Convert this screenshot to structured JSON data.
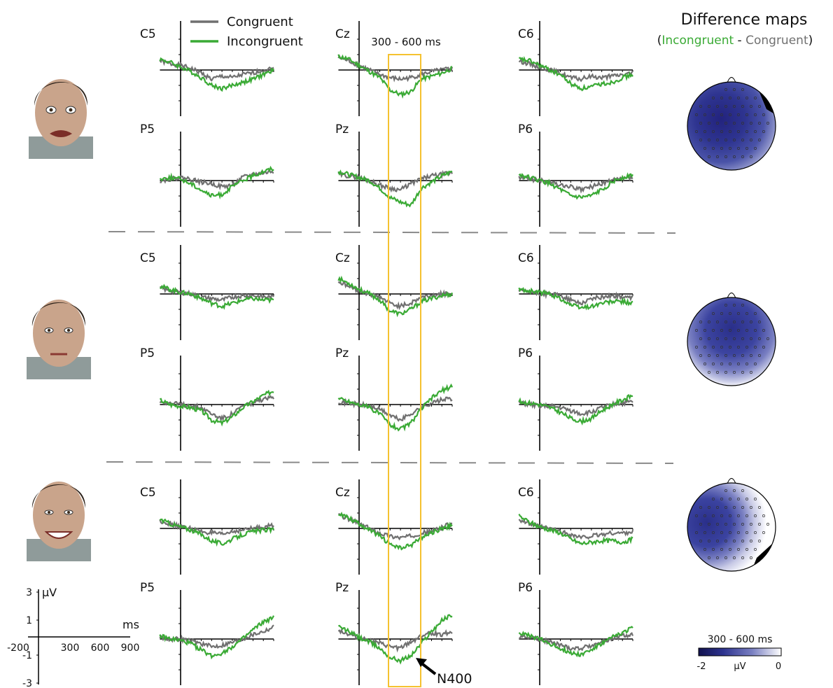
{
  "colors": {
    "congruent": "#707070",
    "incongruent": "#3aaa35",
    "window_box": "#f5c230",
    "map_dark": "#1f1f7a",
    "map_light": "#ffffff",
    "separator": "#8a8a8a"
  },
  "legend": {
    "congruent": "Congruent",
    "incongruent": "Incongruent",
    "position": "top-left"
  },
  "maps_title": {
    "title": "Difference maps",
    "open_paren": "(",
    "incongruent_word": "Incongruent",
    "dash": " - ",
    "congruent_word": "Congruent",
    "close_paren": ")"
  },
  "window_label": "300 - 600 ms",
  "annotation": "N400",
  "scale_axes": {
    "y_unit": "µV",
    "x_unit": "ms",
    "y_ticks": [
      "3",
      "1",
      "-1",
      "-3"
    ],
    "x_ticks": [
      "-200",
      "300",
      "600",
      "900"
    ]
  },
  "colorbar": {
    "title": "300 - 600 ms",
    "min_label": "-2",
    "unit": "µV",
    "max_label": "0",
    "range": [
      -2,
      0
    ]
  },
  "electrodes": [
    "C5",
    "Cz",
    "C6",
    "P5",
    "Pz",
    "P6"
  ],
  "face_icons": [
    "fearful-face-icon",
    "neutral-face-icon",
    "happy-face-icon"
  ],
  "chart_data": {
    "type": "line",
    "x_range_ms": [
      -200,
      900
    ],
    "y_range_uv": [
      -3,
      3
    ],
    "analysis_window_ms": [
      300,
      600
    ],
    "x_ms": [
      -200,
      -100,
      0,
      100,
      200,
      300,
      400,
      500,
      600,
      700,
      800,
      900
    ],
    "panels": [
      {
        "row": 0,
        "electrode": "C5",
        "congruent": [
          0.6,
          0.4,
          0.3,
          0.1,
          -0.2,
          -0.6,
          -0.4,
          -0.5,
          -0.3,
          -0.2,
          0.0,
          0.1
        ],
        "incongruent": [
          0.7,
          0.5,
          0.2,
          -0.1,
          -0.5,
          -1.0,
          -1.2,
          -1.0,
          -0.8,
          -0.6,
          -0.3,
          0.0
        ]
      },
      {
        "row": 0,
        "electrode": "Cz",
        "congruent": [
          0.8,
          0.6,
          0.3,
          0.0,
          -0.3,
          -0.5,
          -0.6,
          -0.5,
          -0.3,
          -0.1,
          0.0,
          0.1
        ],
        "incongruent": [
          0.9,
          0.7,
          0.3,
          -0.1,
          -0.5,
          -1.3,
          -1.6,
          -1.4,
          -0.6,
          -0.4,
          -0.2,
          0.1
        ]
      },
      {
        "row": 0,
        "electrode": "C6",
        "congruent": [
          0.6,
          0.4,
          0.2,
          0.0,
          -0.2,
          -0.5,
          -0.6,
          -0.4,
          -0.5,
          -0.4,
          -0.3,
          -0.2
        ],
        "incongruent": [
          0.7,
          0.6,
          0.3,
          0.0,
          -0.3,
          -0.9,
          -1.2,
          -1.1,
          -0.9,
          -0.8,
          -0.5,
          -0.3
        ]
      },
      {
        "row": 0,
        "electrode": "P5",
        "congruent": [
          0.0,
          0.1,
          0.2,
          0.1,
          -0.1,
          -0.2,
          -0.4,
          -0.3,
          0.2,
          0.4,
          0.5,
          0.6
        ],
        "incongruent": [
          0.1,
          0.2,
          0.1,
          -0.2,
          -0.6,
          -1.0,
          -0.9,
          -0.4,
          0.0,
          0.3,
          0.6,
          0.8
        ]
      },
      {
        "row": 0,
        "electrode": "Pz",
        "congruent": [
          0.4,
          0.3,
          0.2,
          0.0,
          -0.3,
          -0.5,
          -0.6,
          -0.2,
          0.1,
          0.3,
          0.4,
          0.5
        ],
        "incongruent": [
          0.6,
          0.4,
          0.2,
          0.0,
          -0.5,
          -1.1,
          -1.4,
          -1.6,
          -0.5,
          -0.1,
          0.3,
          0.6
        ]
      },
      {
        "row": 0,
        "electrode": "P6",
        "congruent": [
          0.2,
          0.1,
          0.0,
          -0.1,
          -0.3,
          -0.4,
          -0.6,
          -0.4,
          -0.2,
          0.0,
          0.1,
          0.2
        ],
        "incongruent": [
          0.4,
          0.2,
          0.0,
          -0.2,
          -0.6,
          -1.0,
          -1.1,
          -1.0,
          -0.6,
          -0.1,
          0.2,
          0.4
        ]
      },
      {
        "row": 1,
        "electrode": "C5",
        "congruent": [
          0.4,
          0.2,
          0.1,
          0.0,
          -0.2,
          -0.3,
          -0.4,
          -0.2,
          -0.1,
          -0.1,
          -0.2,
          -0.2
        ],
        "incongruent": [
          0.5,
          0.3,
          0.1,
          0.0,
          -0.3,
          -0.6,
          -0.8,
          -0.6,
          -0.4,
          -0.3,
          -0.4,
          -0.4
        ]
      },
      {
        "row": 1,
        "electrode": "Cz",
        "congruent": [
          0.8,
          0.5,
          0.2,
          0.0,
          -0.2,
          -0.6,
          -0.8,
          -0.6,
          -0.2,
          -0.1,
          0.0,
          0.0
        ],
        "incongruent": [
          1.0,
          0.7,
          0.3,
          0.0,
          -0.4,
          -1.1,
          -1.3,
          -1.0,
          -0.5,
          -0.3,
          -0.1,
          0.0
        ]
      },
      {
        "row": 1,
        "electrode": "C6",
        "congruent": [
          0.2,
          0.1,
          0.0,
          0.0,
          -0.1,
          -0.4,
          -0.6,
          -0.3,
          -0.2,
          -0.1,
          -0.2,
          -0.3
        ],
        "incongruent": [
          0.3,
          0.2,
          0.1,
          0.0,
          -0.3,
          -0.7,
          -0.9,
          -0.8,
          -0.6,
          -0.5,
          -0.5,
          -0.6
        ]
      },
      {
        "row": 1,
        "electrode": "P5",
        "congruent": [
          0.2,
          0.1,
          0.0,
          -0.1,
          -0.2,
          -0.6,
          -0.9,
          -0.6,
          -0.1,
          0.1,
          0.3,
          0.5
        ],
        "incongruent": [
          0.3,
          0.0,
          -0.1,
          -0.2,
          -0.4,
          -1.0,
          -1.2,
          -0.8,
          -0.2,
          0.2,
          0.6,
          0.9
        ]
      },
      {
        "row": 1,
        "electrode": "Pz",
        "congruent": [
          0.2,
          0.1,
          0.0,
          -0.1,
          -0.3,
          -0.7,
          -1.0,
          -0.6,
          -0.2,
          0.1,
          0.3,
          0.4
        ],
        "incongruent": [
          0.4,
          0.2,
          0.0,
          -0.2,
          -0.6,
          -1.3,
          -1.6,
          -1.2,
          -0.3,
          0.4,
          0.9,
          1.2
        ]
      },
      {
        "row": 1,
        "electrode": "P6",
        "congruent": [
          0.1,
          0.0,
          -0.1,
          -0.1,
          -0.2,
          -0.4,
          -0.6,
          -0.5,
          -0.2,
          0.0,
          0.1,
          0.2
        ],
        "incongruent": [
          0.2,
          0.1,
          0.0,
          -0.2,
          -0.5,
          -0.9,
          -1.1,
          -0.9,
          -0.4,
          0.0,
          0.3,
          0.6
        ]
      },
      {
        "row": 2,
        "electrode": "C5",
        "congruent": [
          0.5,
          0.3,
          0.1,
          0.0,
          -0.2,
          -0.3,
          -0.4,
          -0.2,
          -0.1,
          0.0,
          0.1,
          0.2
        ],
        "incongruent": [
          0.6,
          0.3,
          0.1,
          -0.1,
          -0.4,
          -0.8,
          -1.0,
          -0.7,
          -0.4,
          -0.2,
          -0.1,
          -0.1
        ]
      },
      {
        "row": 2,
        "electrode": "Cz",
        "congruent": [
          0.9,
          0.6,
          0.3,
          0.0,
          -0.3,
          -0.5,
          -0.6,
          -0.5,
          -0.3,
          -0.2,
          0.1,
          0.3
        ],
        "incongruent": [
          1.0,
          0.7,
          0.3,
          -0.1,
          -0.5,
          -1.0,
          -1.3,
          -1.1,
          -0.6,
          -0.3,
          0.0,
          0.2
        ]
      },
      {
        "row": 2,
        "electrode": "C6",
        "congruent": [
          0.6,
          0.3,
          0.1,
          0.0,
          -0.2,
          -0.4,
          -0.6,
          -0.5,
          -0.4,
          -0.3,
          -0.3,
          -0.2
        ],
        "incongruent": [
          0.8,
          0.4,
          0.1,
          -0.1,
          -0.3,
          -0.7,
          -1.0,
          -0.9,
          -0.8,
          -0.8,
          -0.9,
          -0.7
        ]
      },
      {
        "row": 2,
        "electrode": "P5",
        "congruent": [
          0.1,
          0.0,
          0.0,
          -0.1,
          -0.3,
          -0.5,
          -0.4,
          -0.2,
          0.0,
          0.3,
          0.5,
          0.8
        ],
        "incongruent": [
          0.2,
          0.0,
          -0.1,
          -0.3,
          -0.7,
          -1.1,
          -0.9,
          -0.5,
          0.0,
          0.6,
          1.1,
          1.4
        ]
      },
      {
        "row": 2,
        "electrode": "Pz",
        "congruent": [
          0.6,
          0.3,
          0.1,
          -0.1,
          -0.3,
          -0.5,
          -0.6,
          -0.2,
          0.2,
          0.4,
          0.3,
          0.5
        ],
        "incongruent": [
          0.8,
          0.5,
          0.1,
          -0.2,
          -0.6,
          -1.2,
          -1.4,
          -1.1,
          -0.3,
          0.5,
          1.2,
          1.6
        ]
      },
      {
        "row": 2,
        "electrode": "P6",
        "congruent": [
          0.2,
          0.1,
          0.0,
          -0.2,
          -0.4,
          -0.6,
          -0.6,
          -0.4,
          -0.2,
          0.0,
          0.2,
          0.3
        ],
        "incongruent": [
          0.4,
          0.2,
          0.0,
          -0.3,
          -0.6,
          -0.9,
          -1.0,
          -0.7,
          -0.3,
          0.1,
          0.4,
          0.8
        ]
      }
    ],
    "difference_maps": [
      {
        "row": 0,
        "face": "fearful",
        "range_uv": [
          -2,
          0
        ],
        "topography": "broad central negativity, weaker at right edge"
      },
      {
        "row": 1,
        "face": "neutral",
        "range_uv": [
          -2,
          0
        ],
        "topography": "central-frontal negativity"
      },
      {
        "row": 2,
        "face": "happy",
        "range_uv": [
          -2,
          0
        ],
        "topography": "left-lateralized negativity"
      }
    ]
  }
}
